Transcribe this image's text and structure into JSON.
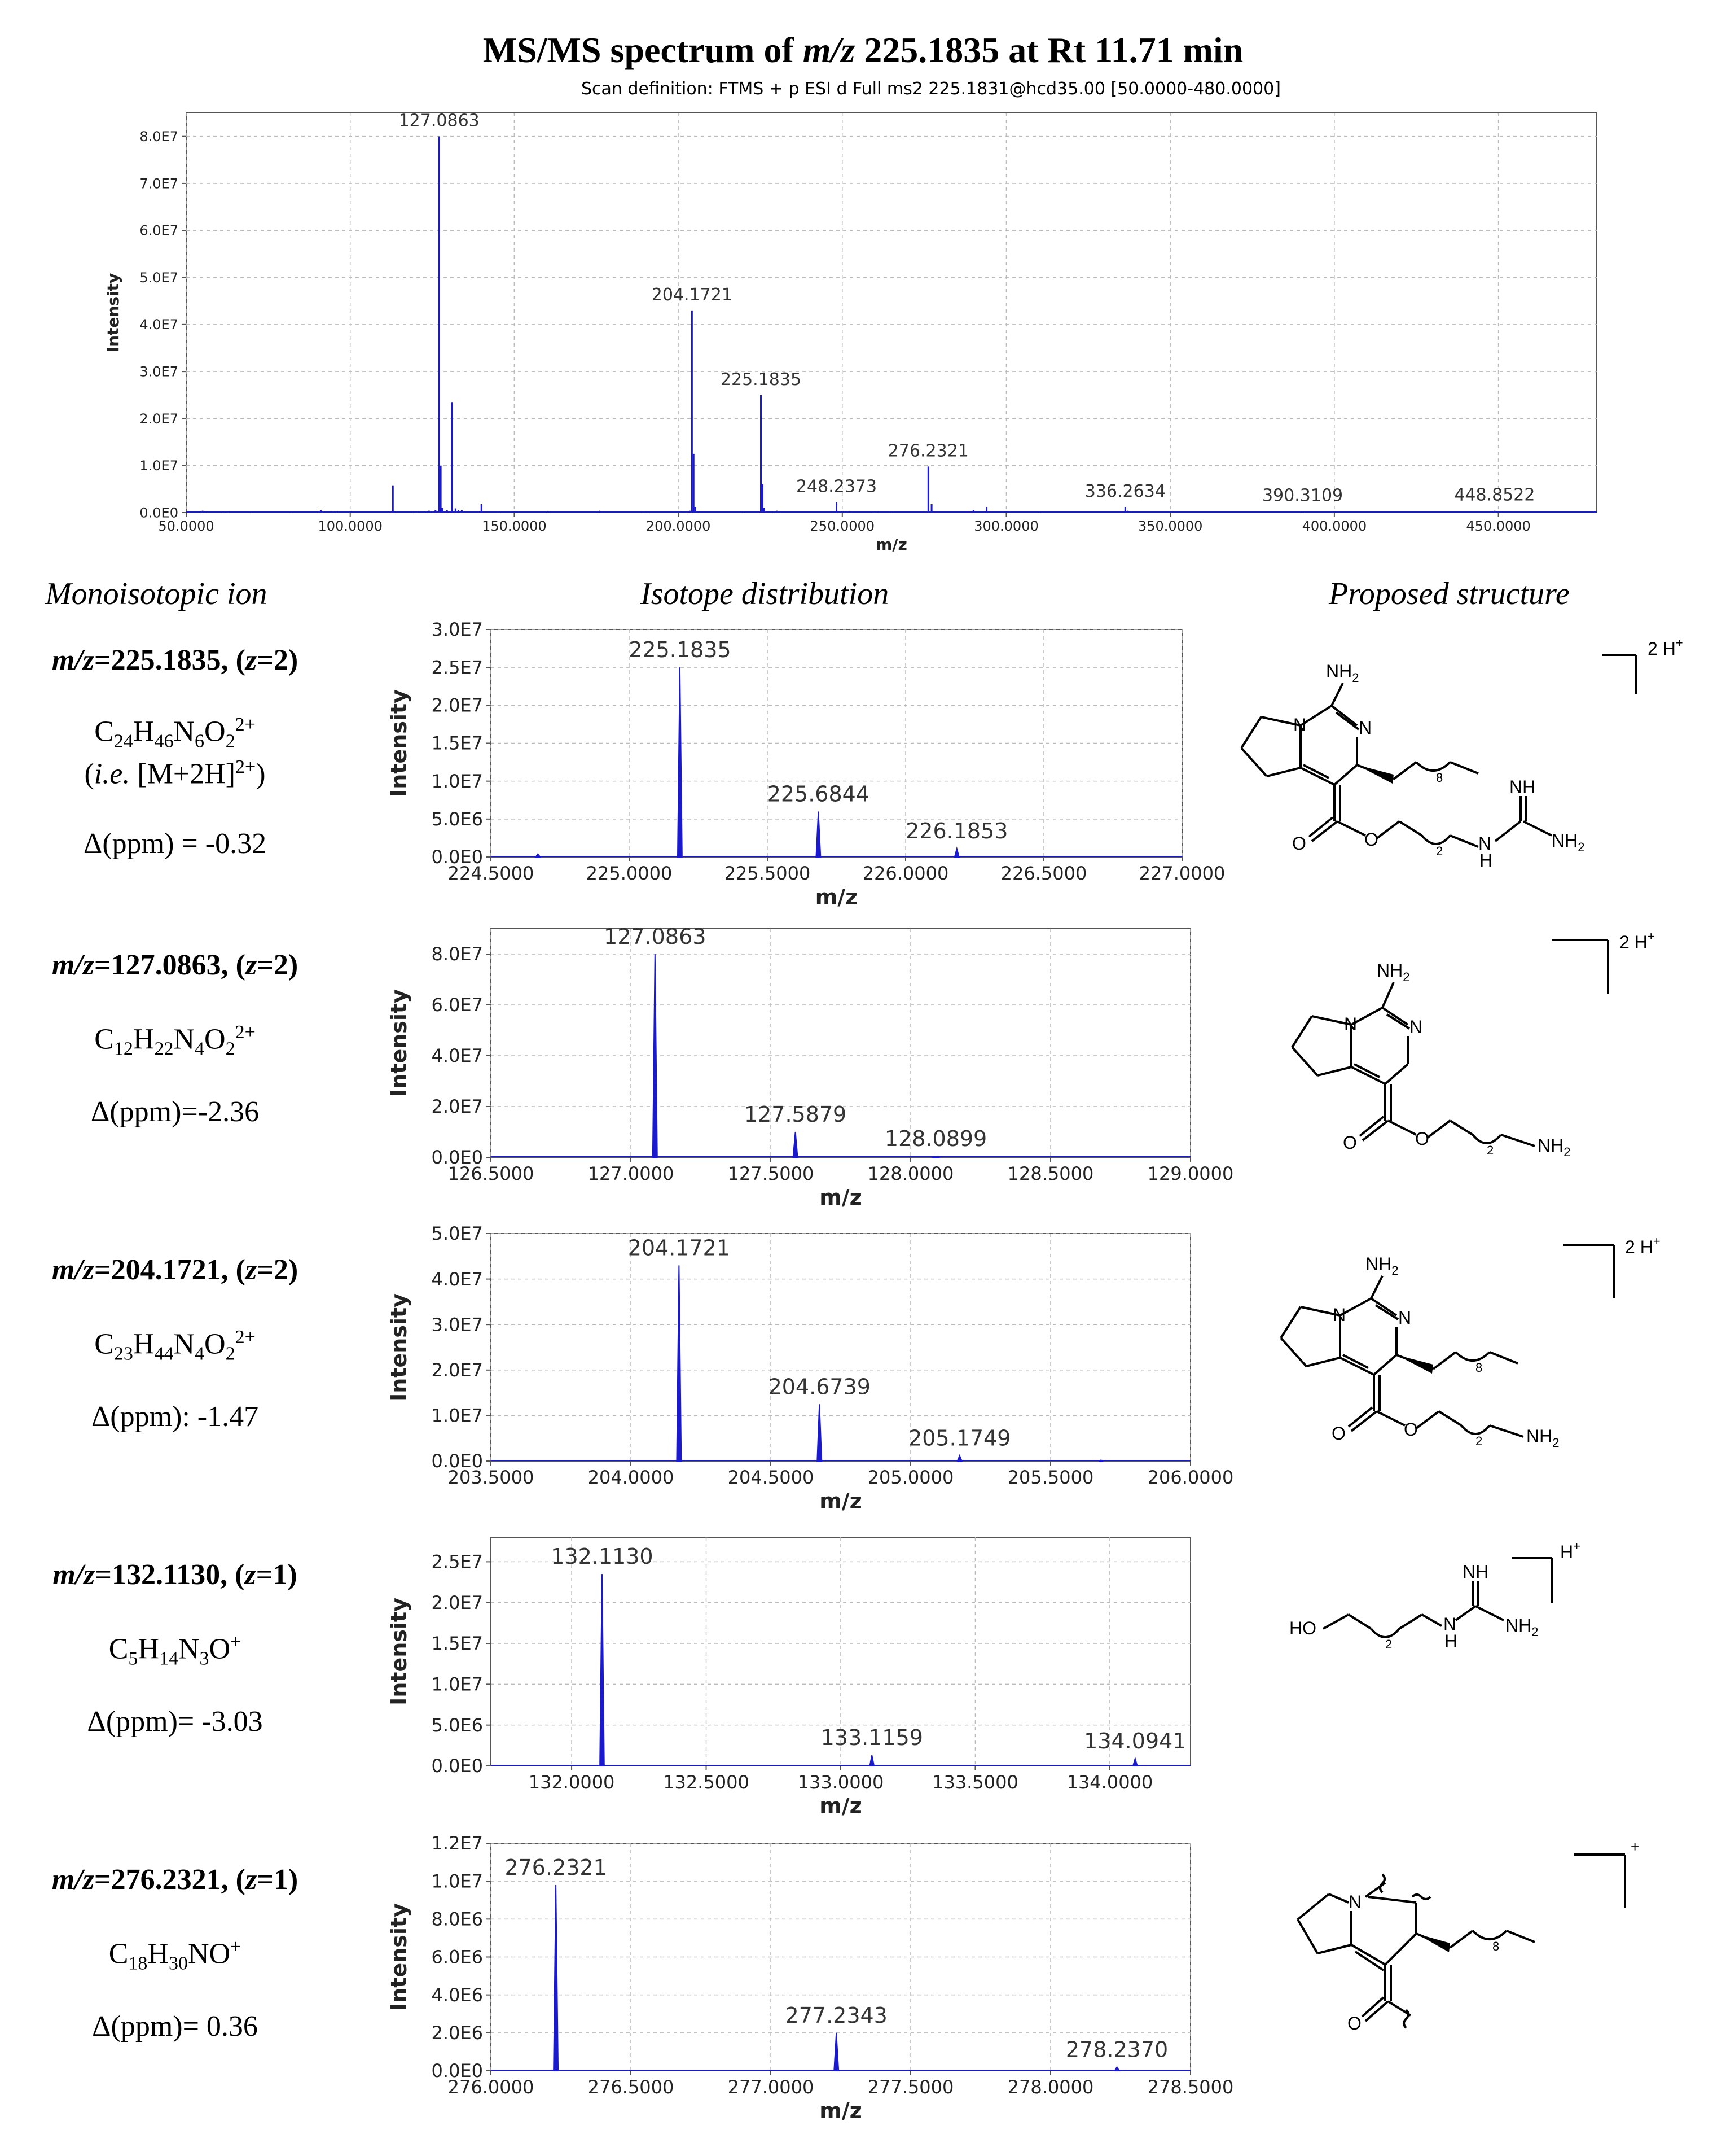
{
  "title": "MS/MS spectrum of m/z 225.1835 at Rt 11.71 min",
  "title_parts": {
    "a": "MS/MS spectrum of ",
    "b": "m/z",
    "c": " 225.1835 at Rt 11.71 min"
  },
  "scan_definition": "Scan definition: FTMS + p ESI d Full ms2 225.1831@hcd35.00 [50.0000-480.0000]",
  "headers": {
    "monoisotopic": "Monoisotopic ion",
    "isotope": "Isotope distribution",
    "structure": "Proposed structure"
  },
  "ions": [
    {
      "mz_label": "m/z",
      "mz_value": "=225.1835, (",
      "z_label": "z",
      "z_value": "=2)",
      "formula": "C24H46N6O22+",
      "formula_parts": [
        "C",
        "24",
        "H",
        "46",
        "N",
        "6",
        "O",
        "2",
        "2+"
      ],
      "extra_a": "(",
      "extra_ie": "i.e.",
      "extra_b": " [M+2H]",
      "extra_sup": "2+",
      "extra_c": ")",
      "ppm": "Δ(ppm) = -0.32"
    },
    {
      "mz_label": "m/z",
      "mz_value": "=127.0863, (",
      "z_label": "z",
      "z_value": "=2)",
      "formula": "C12H22N4O22+",
      "formula_parts": [
        "C",
        "12",
        "H",
        "22",
        "N",
        "4",
        "O",
        "2",
        "2+"
      ],
      "ppm": "Δ(ppm)=-2.36"
    },
    {
      "mz_label": "m/z",
      "mz_value": "=204.1721, (",
      "z_label": "z",
      "z_value": "=2)",
      "formula": "C23H44N4O22+",
      "formula_parts": [
        "C",
        "23",
        "H",
        "44",
        "N",
        "4",
        "O",
        "2",
        "2+"
      ],
      "ppm": "Δ(ppm): -1.47"
    },
    {
      "mz_label": "m/z",
      "mz_value": "=132.1130, (",
      "z_label": "z",
      "z_value": "=1)",
      "formula": "C5H14N3O+",
      "formula_parts": [
        "C",
        "5",
        "H",
        "14",
        "N",
        "3",
        "O",
        "",
        "+"
      ],
      "ppm": "Δ(ppm)= -3.03"
    },
    {
      "mz_label": "m/z",
      "mz_value": "=276.2321, (",
      "z_label": "z",
      "z_value": "=1)",
      "formula": "C18H30NO+",
      "formula_parts": [
        "C",
        "18",
        "H",
        "30",
        "N",
        "",
        "O",
        "",
        "+"
      ],
      "ppm": "Δ(ppm)= 0.36"
    }
  ],
  "structures": {
    "s1": {
      "nh2": "NH",
      "nh2_sub": "2",
      "n1": "N",
      "n2": "N",
      "nh": "NH",
      "nh2b": "NH",
      "nh2b_sub": "2",
      "n3": "N",
      "h": "H",
      "o1": "O",
      "o2": "O",
      "sub8": "8",
      "sub2": "2",
      "charge": "2 H",
      "charge_sup": "+"
    },
    "s2": {
      "nh2": "NH",
      "nh2_sub": "2",
      "n1": "N",
      "n2": "N",
      "o1": "O",
      "o2": "O",
      "nh2b": "NH",
      "nh2b_sub": "2",
      "sub2": "2",
      "charge": "2 H",
      "charge_sup": "+"
    },
    "s3": {
      "nh2": "NH",
      "nh2_sub": "2",
      "n1": "N",
      "n2": "N",
      "o1": "O",
      "o2": "O",
      "nh2b": "NH",
      "nh2b_sub": "2",
      "sub8": "8",
      "sub2": "2",
      "charge": "2 H",
      "charge_sup": "+"
    },
    "s4": {
      "ho": "HO",
      "nh": "NH",
      "n3": "N",
      "h": "H",
      "nh2b": "NH",
      "nh2b_sub": "2",
      "sub2": "2",
      "charge": "H",
      "charge_sup": "+"
    },
    "s5": {
      "n1": "N",
      "o1": "O",
      "sub8": "8",
      "charge_sup": "+"
    }
  },
  "chart_data": [
    {
      "type": "bar",
      "title": "MS/MS spectrum of m/z 225.1835 at Rt 11.71 min",
      "xlabel": "m/z",
      "ylabel": "Intensity",
      "xlim": [
        50,
        480
      ],
      "ylim": [
        0,
        85000000
      ],
      "x_ticks": [
        50,
        100,
        150,
        200,
        250,
        300,
        350,
        400,
        450
      ],
      "x_tick_labels": [
        "50.0000",
        "100.0000",
        "150.0000",
        "200.0000",
        "250.0000",
        "300.0000",
        "350.0000",
        "400.0000",
        "450.0000"
      ],
      "y_ticks": [
        0,
        10000000,
        20000000,
        30000000,
        40000000,
        50000000,
        60000000,
        70000000,
        80000000
      ],
      "y_tick_labels": [
        "0.0E0",
        "1.0E7",
        "2.0E7",
        "3.0E7",
        "4.0E7",
        "5.0E7",
        "6.0E7",
        "7.0E7",
        "8.0E7"
      ],
      "grid": true,
      "peaks": [
        [
          55.0,
          400000
        ],
        [
          62.0,
          300000
        ],
        [
          70.0,
          300000
        ],
        [
          75.0,
          200000
        ],
        [
          82.0,
          300000
        ],
        [
          91.0,
          600000
        ],
        [
          95.0,
          300000
        ],
        [
          112.0,
          300000
        ],
        [
          113.0,
          5800000
        ],
        [
          120.0,
          300000
        ],
        [
          124.0,
          400000
        ],
        [
          126.0,
          600000
        ],
        [
          127.0863,
          80000000
        ],
        [
          127.59,
          10000000
        ],
        [
          128.09,
          1000000
        ],
        [
          129.5,
          500000
        ],
        [
          131.0,
          23500000
        ],
        [
          132.1,
          900000
        ],
        [
          133.0,
          500000
        ],
        [
          134.0,
          600000
        ],
        [
          140.0,
          1800000
        ],
        [
          145.0,
          300000
        ],
        [
          160.0,
          300000
        ],
        [
          176.0,
          400000
        ],
        [
          190.0,
          300000
        ],
        [
          203.5,
          400000
        ],
        [
          204.1721,
          43000000
        ],
        [
          204.67,
          12500000
        ],
        [
          205.17,
          1200000
        ],
        [
          220.0,
          300000
        ],
        [
          225.1835,
          25000000
        ],
        [
          225.68,
          6000000
        ],
        [
          226.19,
          1000000
        ],
        [
          230.0,
          400000
        ],
        [
          248.2373,
          2200000
        ],
        [
          252.0,
          300000
        ],
        [
          260.0,
          300000
        ],
        [
          265.0,
          300000
        ],
        [
          276.2321,
          9800000
        ],
        [
          277.23,
          1800000
        ],
        [
          290.0,
          500000
        ],
        [
          294.0,
          1200000
        ],
        [
          310.0,
          300000
        ],
        [
          336.2634,
          1200000
        ],
        [
          337.0,
          400000
        ],
        [
          360.0,
          200000
        ],
        [
          390.3109,
          300000
        ],
        [
          420.0,
          200000
        ],
        [
          448.8522,
          400000
        ]
      ],
      "labels": [
        {
          "x": 127.0863,
          "y": 80000000,
          "text": "127.0863"
        },
        {
          "x": 204.1721,
          "y": 43000000,
          "text": "204.1721"
        },
        {
          "x": 225.1835,
          "y": 25000000,
          "text": "225.1835"
        },
        {
          "x": 248.2373,
          "y": 2200000,
          "text": "248.2373"
        },
        {
          "x": 276.2321,
          "y": 9800000,
          "text": "276.2321"
        },
        {
          "x": 336.2634,
          "y": 1200000,
          "text": "336.2634"
        },
        {
          "x": 390.3109,
          "y": 300000,
          "text": "390.3109"
        },
        {
          "x": 448.8522,
          "y": 400000,
          "text": "448.8522"
        }
      ]
    },
    {
      "type": "line",
      "xlabel": "m/z",
      "ylabel": "Intensity",
      "xlim": [
        224.5,
        227.0
      ],
      "ylim": [
        0,
        30000000
      ],
      "x_ticks": [
        224.5,
        225.0,
        225.5,
        226.0,
        226.5,
        227.0
      ],
      "x_tick_labels": [
        "224.5000",
        "225.0000",
        "225.5000",
        "226.0000",
        "226.5000",
        "227.0000"
      ],
      "y_ticks": [
        0,
        5000000,
        10000000,
        15000000,
        20000000,
        25000000,
        30000000
      ],
      "y_tick_labels": [
        "0.0E0",
        "5.0E6",
        "1.0E7",
        "1.5E7",
        "2.0E7",
        "2.5E7",
        "3.0E7"
      ],
      "grid": true,
      "peaks": [
        [
          224.67,
          400000
        ],
        [
          225.1835,
          25000000
        ],
        [
          225.6844,
          6000000
        ],
        [
          226.1853,
          1100000
        ]
      ],
      "labels": [
        {
          "x": 225.1835,
          "y": 25000000,
          "text": "225.1835"
        },
        {
          "x": 225.6844,
          "y": 6000000,
          "text": "225.6844"
        },
        {
          "x": 226.1853,
          "y": 1100000,
          "text": "226.1853"
        }
      ]
    },
    {
      "type": "line",
      "xlabel": "m/z",
      "ylabel": "Intensity",
      "xlim": [
        126.5,
        129.0
      ],
      "ylim": [
        0,
        90000000
      ],
      "x_ticks": [
        126.5,
        127.0,
        127.5,
        128.0,
        128.5,
        129.0
      ],
      "x_tick_labels": [
        "126.5000",
        "127.0000",
        "127.5000",
        "128.0000",
        "128.5000",
        "129.0000"
      ],
      "y_ticks": [
        0,
        20000000,
        40000000,
        60000000,
        80000000
      ],
      "y_tick_labels": [
        "0.0E0",
        "2.0E7",
        "4.0E7",
        "6.0E7",
        "8.0E7"
      ],
      "grid": true,
      "peaks": [
        [
          127.0863,
          80000000
        ],
        [
          127.5879,
          10000000
        ],
        [
          128.0899,
          500000
        ]
      ],
      "labels": [
        {
          "x": 127.0863,
          "y": 80000000,
          "text": "127.0863"
        },
        {
          "x": 127.5879,
          "y": 10000000,
          "text": "127.5879"
        },
        {
          "x": 128.0899,
          "y": 500000,
          "text": "128.0899"
        }
      ]
    },
    {
      "type": "line",
      "xlabel": "m/z",
      "ylabel": "Intensity",
      "xlim": [
        203.5,
        206.0
      ],
      "ylim": [
        0,
        50000000
      ],
      "x_ticks": [
        203.5,
        204.0,
        204.5,
        205.0,
        205.5,
        206.0
      ],
      "x_tick_labels": [
        "203.5000",
        "204.0000",
        "204.5000",
        "205.0000",
        "205.5000",
        "206.0000"
      ],
      "y_ticks": [
        0,
        10000000,
        20000000,
        30000000,
        40000000,
        50000000
      ],
      "y_tick_labels": [
        "0.0E0",
        "1.0E7",
        "2.0E7",
        "3.0E7",
        "4.0E7",
        "5.0E7"
      ],
      "grid": true,
      "peaks": [
        [
          204.1721,
          43000000
        ],
        [
          204.6739,
          12500000
        ],
        [
          205.1749,
          1200000
        ],
        [
          205.68,
          200000
        ]
      ],
      "labels": [
        {
          "x": 204.1721,
          "y": 43000000,
          "text": "204.1721"
        },
        {
          "x": 204.6739,
          "y": 12500000,
          "text": "204.6739"
        },
        {
          "x": 205.1749,
          "y": 1200000,
          "text": "205.1749"
        }
      ]
    },
    {
      "type": "line",
      "xlabel": "m/z",
      "ylabel": "Intensity",
      "xlim": [
        131.7,
        134.3
      ],
      "ylim": [
        0,
        28000000
      ],
      "x_ticks": [
        132.0,
        132.5,
        133.0,
        133.5,
        134.0
      ],
      "x_tick_labels": [
        "132.0000",
        "132.5000",
        "133.0000",
        "133.5000",
        "134.0000"
      ],
      "y_ticks": [
        0,
        5000000,
        10000000,
        15000000,
        20000000,
        25000000
      ],
      "y_tick_labels": [
        "0.0E0",
        "5.0E6",
        "1.0E7",
        "1.5E7",
        "2.0E7",
        "2.5E7"
      ],
      "grid": true,
      "peaks": [
        [
          132.113,
          23500000
        ],
        [
          133.1159,
          1300000
        ],
        [
          134.0941,
          900000
        ]
      ],
      "labels": [
        {
          "x": 132.113,
          "y": 23500000,
          "text": "132.1130"
        },
        {
          "x": 133.1159,
          "y": 1300000,
          "text": "133.1159"
        },
        {
          "x": 134.0941,
          "y": 900000,
          "text": "134.0941"
        }
      ]
    },
    {
      "type": "line",
      "xlabel": "m/z",
      "ylabel": "Intensity",
      "xlim": [
        276.0,
        278.5
      ],
      "ylim": [
        0,
        12000000
      ],
      "x_ticks": [
        276.0,
        276.5,
        277.0,
        277.5,
        278.0,
        278.5
      ],
      "x_tick_labels": [
        "276.0000",
        "276.5000",
        "277.0000",
        "277.5000",
        "278.0000",
        "278.5000"
      ],
      "y_ticks": [
        0,
        2000000,
        4000000,
        6000000,
        8000000,
        10000000,
        12000000
      ],
      "y_tick_labels": [
        "0.0E0",
        "2.0E6",
        "4.0E6",
        "6.0E6",
        "8.0E6",
        "1.0E7",
        "1.2E7"
      ],
      "grid": true,
      "peaks": [
        [
          276.2321,
          9800000
        ],
        [
          277.2343,
          2000000
        ],
        [
          278.237,
          200000
        ]
      ],
      "labels": [
        {
          "x": 276.2321,
          "y": 9800000,
          "text": "276.2321"
        },
        {
          "x": 277.2343,
          "y": 2000000,
          "text": "277.2343"
        },
        {
          "x": 278.237,
          "y": 200000,
          "text": "278.2370"
        }
      ]
    }
  ],
  "colors": {
    "peak": "#1a1acc",
    "grid": "#bbbbbb",
    "axis": "#555555"
  }
}
